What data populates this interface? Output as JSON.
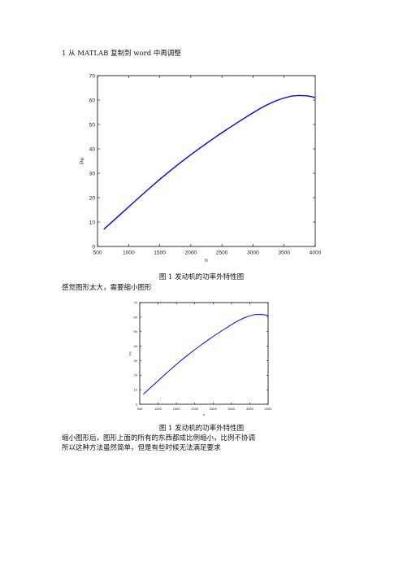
{
  "doc": {
    "heading": "1  从 MATLAB 复制到 word 中再调整",
    "caption1": "图 1  发动机的功率外特性图",
    "note1": "感觉图形太大，需要缩小图形",
    "caption2": "图 1  发动机的功率外特性图",
    "note2_line1": "缩小图形后，图形上面的所有的东西都成比例缩小，比例不协调",
    "note2_line2": "所以这种方法虽然简单，但是有些时候无法满足要求"
  },
  "chart_data": [
    {
      "type": "line",
      "title": "",
      "xlabel": "n",
      "ylabel": "Pe",
      "xlim": [
        500,
        4000
      ],
      "ylim": [
        0,
        70
      ],
      "xticks": [
        500,
        1000,
        1500,
        2000,
        2500,
        3000,
        3500,
        4000
      ],
      "yticks": [
        0,
        10,
        20,
        30,
        40,
        50,
        60,
        70
      ],
      "grid": false,
      "series": [
        {
          "color": "#0000ff",
          "x": [
            600,
            800,
            1000,
            1200,
            1400,
            1600,
            1800,
            2000,
            2200,
            2400,
            2600,
            2800,
            3000,
            3200,
            3400,
            3600,
            3700,
            3800,
            3900,
            4000
          ],
          "y": [
            7.0,
            11.6,
            16.2,
            20.8,
            25.3,
            29.6,
            33.7,
            37.6,
            41.3,
            44.9,
            48.3,
            51.6,
            54.8,
            57.7,
            60.0,
            61.5,
            61.8,
            61.8,
            61.6,
            61.0
          ]
        }
      ]
    },
    {
      "type": "line",
      "title": "",
      "xlabel": "n",
      "ylabel": "Pe",
      "xlim": [
        500,
        4000
      ],
      "ylim": [
        0,
        70
      ],
      "xticks": [
        500,
        1000,
        1500,
        2000,
        2500,
        3000,
        3500,
        4000
      ],
      "yticks": [
        0,
        10,
        20,
        30,
        40,
        50,
        60,
        70
      ],
      "grid": false,
      "series": [
        {
          "color": "#0000ff",
          "x": [
            600,
            800,
            1000,
            1200,
            1400,
            1600,
            1800,
            2000,
            2200,
            2400,
            2600,
            2800,
            3000,
            3200,
            3400,
            3600,
            3700,
            3800,
            3900,
            4000
          ],
          "y": [
            7.0,
            11.6,
            16.2,
            20.8,
            25.3,
            29.6,
            33.7,
            37.6,
            41.3,
            44.9,
            48.3,
            51.6,
            54.8,
            57.7,
            60.0,
            61.5,
            61.8,
            61.8,
            61.6,
            61.0
          ]
        }
      ]
    }
  ]
}
